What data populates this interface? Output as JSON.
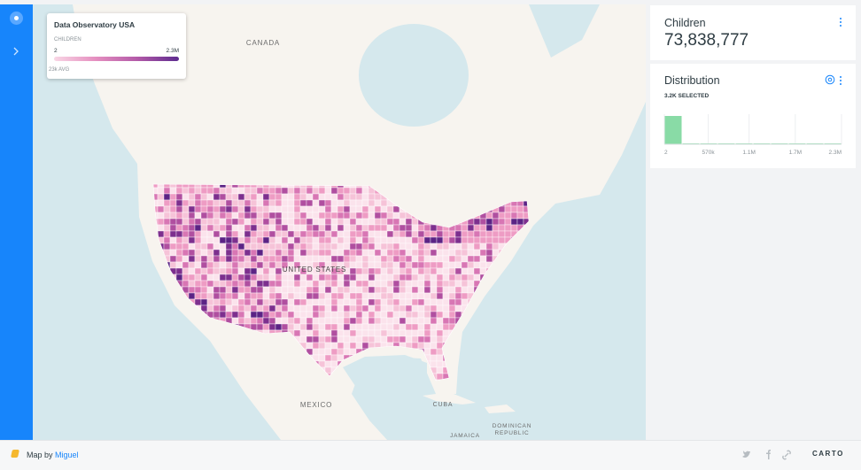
{
  "legend": {
    "title": "Data Observatory USA",
    "label": "CHILDREN",
    "min": "2",
    "max": "2.3M",
    "avg": "23k AVG"
  },
  "map_labels": [
    "CANADA",
    "UNITED STATES",
    "MEXICO",
    "CUBA",
    "DOMINICAN",
    "REPUBLIC",
    "JAMAICA"
  ],
  "widgets": [
    {
      "title": "Children",
      "value": "73,838,777"
    },
    {
      "title": "Distribution",
      "selected": "3.2K SELECTED",
      "histogram": {
        "type": "histogram",
        "bins": [
          2,
          230000,
          460000,
          690000,
          920000,
          1150000,
          1380000,
          1610000,
          1840000,
          2070000,
          2300000
        ],
        "counts": [
          3080,
          45,
          18,
          12,
          6,
          0,
          0,
          0,
          0,
          3
        ],
        "color": "#89dba6",
        "xlim": [
          2,
          2300000
        ],
        "xticks": [
          2,
          {
            "value": 570000,
            "label": "570k"
          },
          {
            "value": 1100000,
            "label": "1.1M"
          },
          {
            "value": 1700000,
            "label": "1.7M"
          },
          {
            "value": 2300000,
            "label": "2.3M"
          }
        ]
      }
    }
  ],
  "footer": {
    "prefix": "Map by",
    "author": "Miguel",
    "logo": "CARTO"
  }
}
